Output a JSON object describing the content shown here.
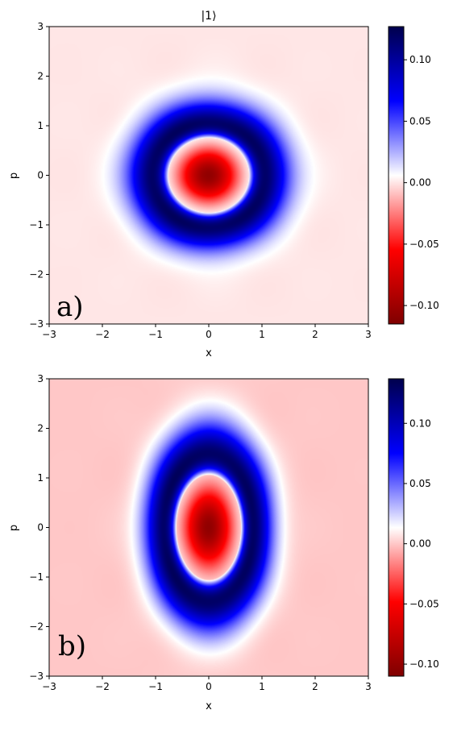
{
  "chart_data": [
    {
      "type": "heatmap",
      "panel_label": "a)",
      "title": "|1⟩",
      "xlabel": "x",
      "ylabel": "p",
      "xlim": [
        -3,
        3
      ],
      "ylim": [
        -3,
        3
      ],
      "x_ticks": [
        -3,
        -2,
        -1,
        0,
        1,
        2,
        3
      ],
      "y_ticks": [
        -3,
        -2,
        -1,
        0,
        1,
        2,
        3
      ],
      "x_tick_labels": [
        "−3",
        "−2",
        "−1",
        "0",
        "1",
        "2",
        "3"
      ],
      "y_tick_labels": [
        "−3",
        "−2",
        "−1",
        "0",
        "1",
        "2",
        "3"
      ],
      "colormap": "seismic_r",
      "vmin": -0.115,
      "vmax": 0.127,
      "colorbar_ticks": [
        0.1,
        0.05,
        0.0,
        -0.05,
        -0.1
      ],
      "colorbar_tick_labels": [
        "0.10",
        "0.05",
        "0.00",
        "−0.05",
        "−0.10"
      ],
      "center_min": -0.11,
      "ring_peak": 0.12,
      "sigma_x": 0.75,
      "sigma_p": 0.75
    },
    {
      "type": "heatmap",
      "panel_label": "b)",
      "xlabel": "x",
      "ylabel": "p",
      "xlim": [
        -3,
        3
      ],
      "ylim": [
        -3,
        3
      ],
      "x_ticks": [
        -3,
        -2,
        -1,
        0,
        1,
        2,
        3
      ],
      "y_ticks": [
        -3,
        -2,
        -1,
        0,
        1,
        2,
        3
      ],
      "x_tick_labels": [
        "−3",
        "−2",
        "−1",
        "0",
        "1",
        "2",
        "3"
      ],
      "y_tick_labels": [
        "−3",
        "−2",
        "−1",
        "0",
        "1",
        "2",
        "3"
      ],
      "colormap": "seismic_r",
      "vmin": -0.11,
      "vmax": 0.137,
      "colorbar_ticks": [
        0.1,
        0.05,
        0.0,
        -0.05,
        -0.1
      ],
      "colorbar_tick_labels": [
        "0.10",
        "0.05",
        "0.00",
        "−0.05",
        "−0.10"
      ],
      "center_min": -0.105,
      "ring_peak": 0.13,
      "sigma_x": 0.6,
      "sigma_p": 1.05
    }
  ],
  "colors": {
    "dark_navy": "#00004c",
    "blue": "#0000ff",
    "white": "#ffffff",
    "red": "#ff0000",
    "dark_red": "#7f0000"
  }
}
